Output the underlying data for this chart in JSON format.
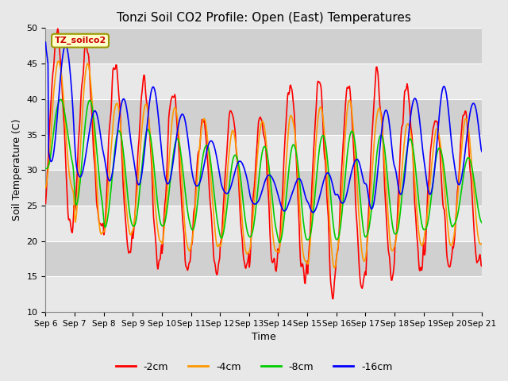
{
  "title": "Tonzi Soil CO2 Profile: Open (East) Temperatures",
  "xlabel": "Time",
  "ylabel": "Soil Temperature (C)",
  "ylim": [
    10,
    50
  ],
  "series_labels": [
    "-2cm",
    "-4cm",
    "-8cm",
    "-16cm"
  ],
  "series_colors": [
    "#ff0000",
    "#ff9900",
    "#00cc00",
    "#0000ff"
  ],
  "legend_title": "TZ_soilco2",
  "x_tick_labels": [
    "Sep 6",
    "Sep 7",
    "Sep 8",
    "Sep 9",
    "Sep 10",
    "Sep 11",
    "Sep 12",
    "Sep 13",
    "Sep 14",
    "Sep 15",
    "Sep 16",
    "Sep 17",
    "Sep 18",
    "Sep 19",
    "Sep 20",
    "Sep 21"
  ],
  "yticks": [
    10,
    15,
    20,
    25,
    30,
    35,
    40,
    45,
    50
  ],
  "band_colors": [
    "#e8e8e8",
    "#d0d0d0"
  ],
  "grid_color": "#ffffff",
  "linewidth": 1.2,
  "figsize": [
    6.4,
    4.8
  ],
  "dpi": 100
}
